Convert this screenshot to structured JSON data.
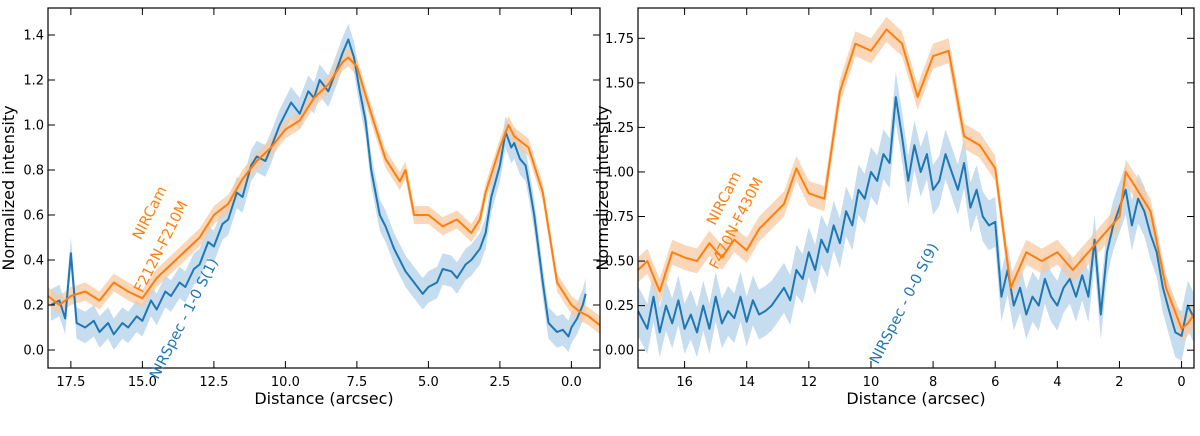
{
  "colors": {
    "nircam": "#ff7f0e",
    "nirspec": "#1f77b4",
    "nircam_band": "#f7c9a0",
    "nirspec_band": "#bcd6ec"
  },
  "chart_data": [
    {
      "type": "line",
      "xlabel": "Distance (arcsec)",
      "ylabel": "Normalized intensity",
      "xlim": [
        18.3,
        -1.0
      ],
      "ylim": [
        -0.08,
        1.52
      ],
      "xticks": [
        17.5,
        15.0,
        12.5,
        10.0,
        7.5,
        5.0,
        2.5,
        0.0
      ],
      "xtick_labels": [
        "17.5",
        "15.0",
        "12.5",
        "10.0",
        "7.5",
        "5.0",
        "2.5",
        "0.0"
      ],
      "yticks": [
        0.0,
        0.2,
        0.4,
        0.6,
        0.8,
        1.0,
        1.2,
        1.4
      ],
      "ytick_labels": [
        "0.0",
        "0.2",
        "0.4",
        "0.6",
        "0.8",
        "1.0",
        "1.2",
        "1.4"
      ],
      "annotations": [
        {
          "text": "NIRCam",
          "series": "nircam",
          "x": 14.6,
          "y": 0.6
        },
        {
          "text": "F212N-F210M",
          "series": "nircam",
          "x": 14.2,
          "y": 0.45
        },
        {
          "text": "NIRSpec - 1-0 S(1)",
          "series": "nirspec",
          "x": 13.4,
          "y": 0.13
        }
      ],
      "series": [
        {
          "name": "NIRCam",
          "key": "nircam",
          "band": 0.04,
          "x": [
            18.3,
            17.9,
            17.5,
            17.0,
            16.5,
            16.0,
            15.5,
            15.0,
            14.5,
            14.0,
            13.5,
            13.0,
            12.5,
            12.0,
            11.5,
            11.0,
            10.5,
            10.0,
            9.5,
            9.0,
            8.5,
            8.0,
            7.8,
            7.5,
            7.0,
            6.5,
            6.0,
            5.8,
            5.5,
            5.0,
            4.5,
            4.0,
            3.5,
            3.2,
            3.0,
            2.5,
            2.2,
            2.0,
            1.5,
            1.0,
            0.5,
            0.0,
            -0.3,
            -0.6,
            -1.0
          ],
          "y": [
            0.24,
            0.2,
            0.24,
            0.26,
            0.22,
            0.3,
            0.26,
            0.23,
            0.32,
            0.38,
            0.44,
            0.5,
            0.6,
            0.65,
            0.76,
            0.84,
            0.9,
            0.98,
            1.02,
            1.12,
            1.18,
            1.28,
            1.3,
            1.26,
            1.05,
            0.85,
            0.75,
            0.8,
            0.6,
            0.6,
            0.55,
            0.58,
            0.52,
            0.58,
            0.7,
            0.9,
            1.0,
            0.95,
            0.9,
            0.7,
            0.3,
            0.2,
            0.17,
            0.15,
            0.11
          ]
        },
        {
          "name": "NIRSpec - 1-0 S(1)",
          "key": "nirspec",
          "band": 0.07,
          "x": [
            18.2,
            17.9,
            17.7,
            17.5,
            17.3,
            17.0,
            16.7,
            16.5,
            16.2,
            16.0,
            15.7,
            15.5,
            15.2,
            15.0,
            14.7,
            14.5,
            14.2,
            14.0,
            13.7,
            13.5,
            13.2,
            13.0,
            12.7,
            12.5,
            12.2,
            12.0,
            11.7,
            11.5,
            11.2,
            11.0,
            10.7,
            10.5,
            10.2,
            10.0,
            9.8,
            9.5,
            9.2,
            9.0,
            8.8,
            8.5,
            8.2,
            8.0,
            7.8,
            7.6,
            7.4,
            7.2,
            7.0,
            6.7,
            6.5,
            6.2,
            6.0,
            5.8,
            5.5,
            5.2,
            5.0,
            4.7,
            4.5,
            4.2,
            4.0,
            3.7,
            3.5,
            3.2,
            3.0,
            2.8,
            2.5,
            2.3,
            2.1,
            2.0,
            1.8,
            1.6,
            1.5,
            1.3,
            1.0,
            0.8,
            0.5,
            0.3,
            0.1,
            0.0,
            -0.2,
            -0.4,
            -0.5
          ],
          "y": [
            0.2,
            0.22,
            0.14,
            0.43,
            0.12,
            0.1,
            0.13,
            0.08,
            0.12,
            0.07,
            0.12,
            0.1,
            0.15,
            0.13,
            0.22,
            0.18,
            0.26,
            0.24,
            0.3,
            0.28,
            0.36,
            0.38,
            0.48,
            0.46,
            0.56,
            0.58,
            0.7,
            0.68,
            0.82,
            0.86,
            0.84,
            0.9,
            1.0,
            1.05,
            1.1,
            1.05,
            1.15,
            1.12,
            1.2,
            1.15,
            1.25,
            1.32,
            1.38,
            1.3,
            1.15,
            1.02,
            0.8,
            0.6,
            0.55,
            0.45,
            0.4,
            0.35,
            0.3,
            0.25,
            0.28,
            0.3,
            0.36,
            0.35,
            0.32,
            0.38,
            0.4,
            0.45,
            0.52,
            0.68,
            0.82,
            0.97,
            0.9,
            0.92,
            0.85,
            0.82,
            0.75,
            0.6,
            0.3,
            0.12,
            0.08,
            0.09,
            0.06,
            0.1,
            0.14,
            0.2,
            0.25
          ]
        }
      ]
    },
    {
      "type": "line",
      "xlabel": "Distance (arcsec)",
      "ylabel": "Normalized intensity",
      "xlim": [
        17.5,
        -0.4
      ],
      "ylim": [
        -0.1,
        1.92
      ],
      "xticks": [
        16,
        14,
        12,
        10,
        8,
        6,
        4,
        2,
        0
      ],
      "xtick_labels": [
        "16",
        "14",
        "12",
        "10",
        "8",
        "6",
        "4",
        "2",
        "0"
      ],
      "yticks": [
        0.0,
        0.25,
        0.5,
        0.75,
        1.0,
        1.25,
        1.5,
        1.75
      ],
      "ytick_labels": [
        "0.00",
        "0.25",
        "0.50",
        "0.75",
        "1.00",
        "1.25",
        "1.50",
        "1.75"
      ],
      "annotations": [
        {
          "text": "NIRCam",
          "series": "nircam",
          "x": 14.6,
          "y": 0.84
        },
        {
          "text": "F470N-F430M",
          "series": "nircam",
          "x": 14.2,
          "y": 0.7
        },
        {
          "text": "NIRSpec - 0-0 S(9)",
          "series": "nirspec",
          "x": 8.8,
          "y": 0.25
        }
      ],
      "series": [
        {
          "name": "NIRCam",
          "key": "nircam",
          "band": 0.07,
          "x": [
            17.5,
            17.2,
            16.8,
            16.4,
            16.0,
            15.6,
            15.2,
            14.8,
            14.4,
            14.0,
            13.6,
            13.2,
            12.8,
            12.4,
            12.0,
            11.5,
            11.0,
            10.5,
            10.0,
            9.5,
            9.0,
            8.5,
            8.0,
            7.5,
            7.0,
            6.5,
            6.0,
            5.5,
            5.0,
            4.5,
            4.0,
            3.5,
            3.0,
            2.5,
            2.0,
            1.8,
            1.5,
            1.0,
            0.5,
            0.0,
            -0.2,
            -0.4
          ],
          "y": [
            0.45,
            0.5,
            0.33,
            0.55,
            0.52,
            0.5,
            0.6,
            0.52,
            0.62,
            0.56,
            0.68,
            0.75,
            0.82,
            1.02,
            0.88,
            0.85,
            1.45,
            1.72,
            1.68,
            1.8,
            1.72,
            1.42,
            1.65,
            1.68,
            1.2,
            1.15,
            1.02,
            0.35,
            0.55,
            0.5,
            0.55,
            0.45,
            0.55,
            0.65,
            0.75,
            1.0,
            0.92,
            0.78,
            0.35,
            0.12,
            0.15,
            0.2
          ]
        },
        {
          "name": "NIRSpec - 0-0 S(9)",
          "key": "nirspec",
          "band": 0.14,
          "x": [
            17.5,
            17.2,
            17.0,
            16.8,
            16.6,
            16.4,
            16.2,
            16.0,
            15.8,
            15.6,
            15.4,
            15.2,
            15.0,
            14.8,
            14.6,
            14.4,
            14.2,
            14.0,
            13.8,
            13.6,
            13.4,
            13.2,
            13.0,
            12.8,
            12.6,
            12.4,
            12.2,
            12.0,
            11.8,
            11.6,
            11.4,
            11.2,
            11.0,
            10.8,
            10.6,
            10.4,
            10.2,
            10.0,
            9.8,
            9.6,
            9.4,
            9.2,
            9.0,
            8.8,
            8.6,
            8.4,
            8.2,
            8.0,
            7.8,
            7.6,
            7.4,
            7.2,
            7.0,
            6.8,
            6.6,
            6.4,
            6.2,
            6.0,
            5.8,
            5.6,
            5.4,
            5.2,
            5.0,
            4.8,
            4.6,
            4.4,
            4.2,
            4.0,
            3.8,
            3.6,
            3.4,
            3.2,
            3.0,
            2.8,
            2.6,
            2.4,
            2.2,
            2.0,
            1.8,
            1.6,
            1.4,
            1.2,
            1.0,
            0.8,
            0.6,
            0.4,
            0.2,
            0.0,
            -0.2,
            -0.4
          ],
          "y": [
            0.22,
            0.12,
            0.3,
            0.1,
            0.25,
            0.15,
            0.28,
            0.12,
            0.2,
            0.1,
            0.25,
            0.12,
            0.3,
            0.15,
            0.22,
            0.18,
            0.3,
            0.16,
            0.28,
            0.2,
            0.22,
            0.25,
            0.3,
            0.35,
            0.28,
            0.45,
            0.4,
            0.55,
            0.45,
            0.62,
            0.55,
            0.7,
            0.6,
            0.78,
            0.7,
            0.9,
            0.85,
            1.0,
            0.95,
            1.1,
            1.05,
            1.42,
            1.2,
            0.95,
            1.15,
            1.0,
            1.1,
            0.9,
            0.95,
            1.1,
            1.0,
            0.9,
            1.05,
            0.8,
            0.9,
            0.75,
            0.7,
            0.72,
            0.3,
            0.45,
            0.25,
            0.35,
            0.2,
            0.3,
            0.25,
            0.4,
            0.3,
            0.25,
            0.35,
            0.4,
            0.3,
            0.42,
            0.3,
            0.62,
            0.2,
            0.55,
            0.7,
            0.8,
            0.9,
            0.7,
            0.85,
            0.78,
            0.65,
            0.55,
            0.35,
            0.22,
            0.1,
            0.08,
            0.25,
            0.18
          ]
        }
      ]
    }
  ]
}
